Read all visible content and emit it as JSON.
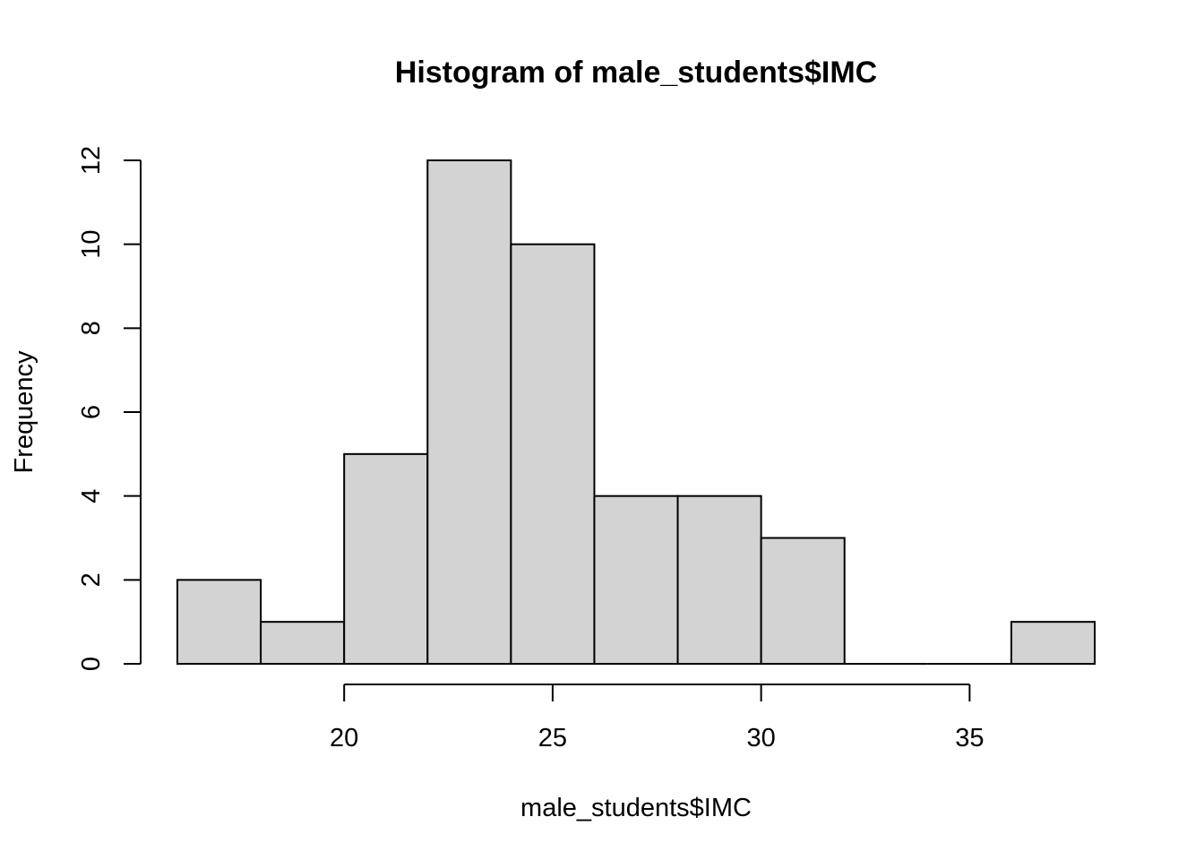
{
  "chart_data": {
    "type": "bar",
    "title": "Histogram of male_students$IMC",
    "xlabel": "male_students$IMC",
    "ylabel": "Frequency",
    "bins": [
      {
        "start": 16,
        "end": 18,
        "count": 2
      },
      {
        "start": 18,
        "end": 20,
        "count": 1
      },
      {
        "start": 20,
        "end": 22,
        "count": 5
      },
      {
        "start": 22,
        "end": 24,
        "count": 12
      },
      {
        "start": 24,
        "end": 26,
        "count": 10
      },
      {
        "start": 26,
        "end": 28,
        "count": 4
      },
      {
        "start": 28,
        "end": 30,
        "count": 4
      },
      {
        "start": 30,
        "end": 32,
        "count": 3
      },
      {
        "start": 32,
        "end": 34,
        "count": 0
      },
      {
        "start": 34,
        "end": 36,
        "count": 0
      },
      {
        "start": 36,
        "end": 38,
        "count": 1
      }
    ],
    "x_ticks": [
      20,
      25,
      30,
      35
    ],
    "y_ticks": [
      0,
      2,
      4,
      6,
      8,
      10,
      12
    ],
    "xlim": [
      16,
      38
    ],
    "ylim": [
      0,
      12
    ],
    "grid": false,
    "colors": {
      "bar_fill": "#d3d3d3",
      "bar_stroke": "#000000"
    }
  }
}
